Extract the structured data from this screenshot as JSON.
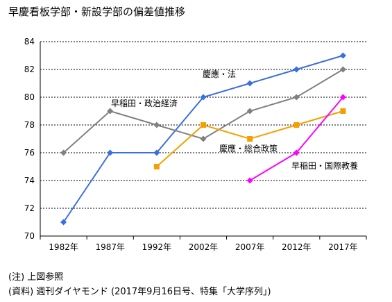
{
  "chart_data": {
    "type": "line",
    "title": "早慶看板学部・新設学部の偏差値推移",
    "categories": [
      "1982年",
      "1987年",
      "1992年",
      "2002年",
      "2007年",
      "2012年",
      "2017年"
    ],
    "ylim": [
      70,
      84
    ],
    "yticks": [
      70,
      72,
      74,
      76,
      78,
      80,
      82,
      84
    ],
    "grid": true,
    "series": [
      {
        "name": "慶應・法",
        "color": "#3a6fe0",
        "marker": "diamond",
        "values": [
          71,
          76,
          76,
          80,
          81,
          82,
          83
        ]
      },
      {
        "name": "早稲田・政治経済",
        "color": "#808080",
        "marker": "diamond",
        "values": [
          76,
          79,
          78,
          77,
          79,
          80,
          82
        ]
      },
      {
        "name": "慶應・総合政策",
        "color": "#f5a000",
        "marker": "square",
        "values": [
          null,
          null,
          75,
          78,
          77,
          78,
          79
        ]
      },
      {
        "name": "早稲田・国際教養",
        "color": "#ff00ff",
        "marker": "diamond",
        "values": [
          null,
          null,
          null,
          null,
          74,
          76,
          80
        ]
      }
    ]
  },
  "notes": {
    "note_1": "(注) 上図参照",
    "note_2": "(資料) 週刊ダイヤモンド (2017年9月16日号、特集「大学序列」)"
  }
}
